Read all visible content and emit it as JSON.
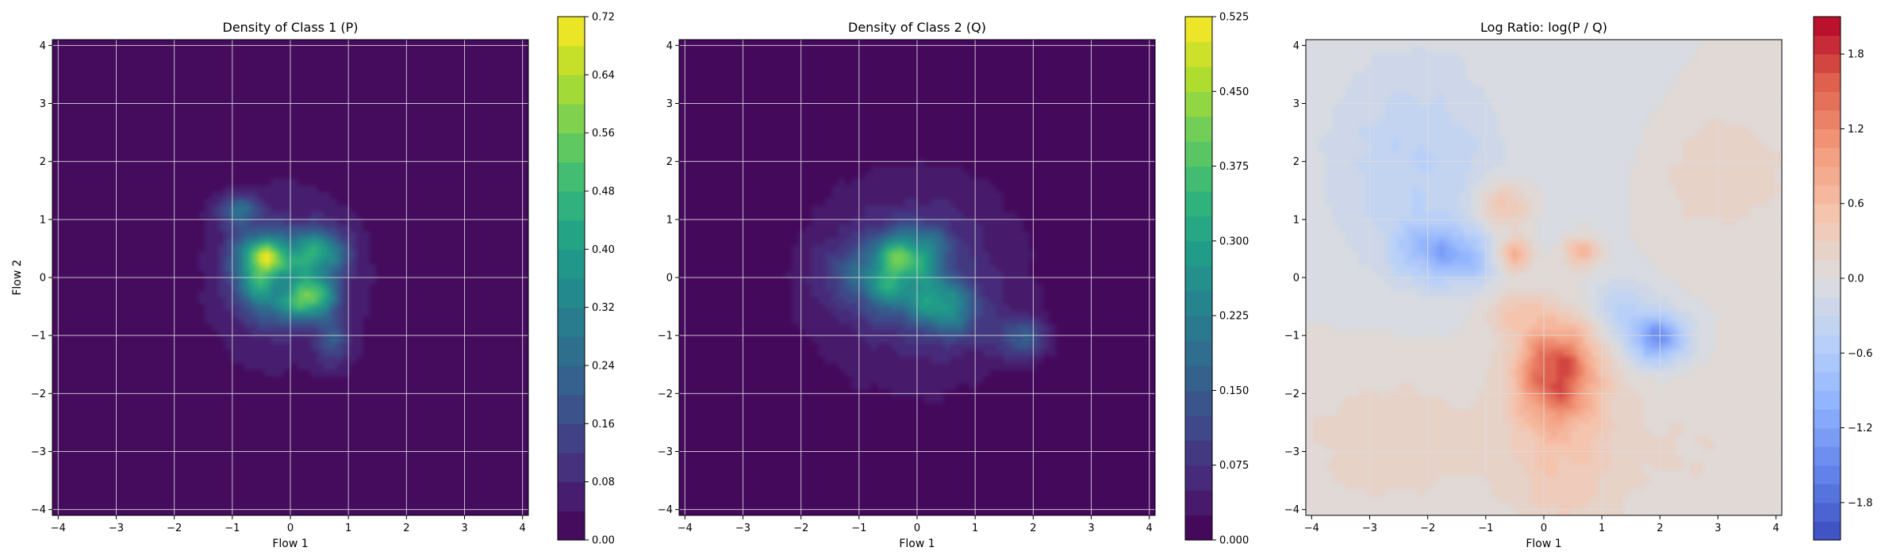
{
  "chart_data": [
    {
      "type": "heatmap",
      "title": "Density of Class 1 (P)",
      "xlabel": "Flow 1",
      "ylabel": "Flow 2",
      "xlim": [
        -4.1,
        4.1
      ],
      "ylim": [
        -4.1,
        4.1
      ],
      "xticks": [
        -4,
        -3,
        -2,
        -1,
        0,
        1,
        2,
        3,
        4
      ],
      "yticks": [
        -4,
        -3,
        -2,
        -1,
        0,
        1,
        2,
        3,
        4
      ],
      "grid": true,
      "colormap": "viridis",
      "colorbar": {
        "min": 0.0,
        "max": 0.72,
        "levels": 18,
        "ticks": [
          0.0,
          0.08,
          0.16,
          0.24,
          0.32,
          0.4,
          0.48,
          0.56,
          0.64,
          0.72
        ],
        "tick_labels": [
          "0.00",
          "0.08",
          "0.16",
          "0.24",
          "0.32",
          "0.40",
          "0.48",
          "0.56",
          "0.64",
          "0.72"
        ]
      },
      "blobs": [
        {
          "x": -0.1,
          "y": 0.0,
          "sx": 1.15,
          "sy": 1.3,
          "a": 0.09
        },
        {
          "x": -0.5,
          "y": 0.35,
          "sx": 0.32,
          "sy": 0.28,
          "a": 0.45
        },
        {
          "x": 0.35,
          "y": -0.35,
          "sx": 0.28,
          "sy": 0.22,
          "a": 0.5
        },
        {
          "x": 0.55,
          "y": 0.4,
          "sx": 0.3,
          "sy": 0.3,
          "a": 0.3
        },
        {
          "x": -0.9,
          "y": 1.15,
          "sx": 0.25,
          "sy": 0.18,
          "a": 0.22
        },
        {
          "x": -0.55,
          "y": -0.2,
          "sx": 0.3,
          "sy": 0.3,
          "a": 0.22
        },
        {
          "x": 0.75,
          "y": -1.1,
          "sx": 0.2,
          "sy": 0.3,
          "a": 0.15
        },
        {
          "x": 0.05,
          "y": 0.35,
          "sx": 0.35,
          "sy": 0.3,
          "a": 0.18
        },
        {
          "x": -0.15,
          "y": -0.6,
          "sx": 0.3,
          "sy": 0.25,
          "a": 0.12
        }
      ]
    },
    {
      "type": "heatmap",
      "title": "Density of Class 2 (Q)",
      "xlabel": "Flow 1",
      "ylabel": "",
      "xlim": [
        -4.1,
        4.1
      ],
      "ylim": [
        -4.1,
        4.1
      ],
      "xticks": [
        -4,
        -3,
        -2,
        -1,
        0,
        1,
        2,
        3,
        4
      ],
      "yticks": [
        -4,
        -3,
        -2,
        -1,
        0,
        1,
        2,
        3,
        4
      ],
      "grid": true,
      "colormap": "viridis",
      "colorbar": {
        "min": 0.0,
        "max": 0.525,
        "levels": 21,
        "ticks": [
          0.0,
          0.075,
          0.15,
          0.225,
          0.3,
          0.375,
          0.45,
          0.525
        ],
        "tick_labels": [
          "0.000",
          "0.075",
          "0.150",
          "0.225",
          "0.300",
          "0.375",
          "0.450",
          "0.525"
        ]
      },
      "blobs": [
        {
          "x": -0.05,
          "y": -0.05,
          "sx": 1.35,
          "sy": 1.3,
          "a": 0.085
        },
        {
          "x": -0.3,
          "y": 0.35,
          "sx": 0.35,
          "sy": 0.3,
          "a": 0.26
        },
        {
          "x": 0.35,
          "y": -0.4,
          "sx": 0.35,
          "sy": 0.3,
          "a": 0.2
        },
        {
          "x": -0.5,
          "y": -0.2,
          "sx": 0.35,
          "sy": 0.3,
          "a": 0.15
        },
        {
          "x": 1.8,
          "y": -1.05,
          "sx": 0.3,
          "sy": 0.25,
          "a": 0.13
        },
        {
          "x": 0.7,
          "y": -0.7,
          "sx": 0.35,
          "sy": 0.3,
          "a": 0.08
        },
        {
          "x": -1.15,
          "y": 0.1,
          "sx": 0.4,
          "sy": 0.35,
          "a": 0.07
        },
        {
          "x": 0.2,
          "y": 0.5,
          "sx": 0.3,
          "sy": 0.3,
          "a": 0.1
        }
      ]
    },
    {
      "type": "heatmap",
      "title": "Log Ratio: log(P / Q)",
      "xlabel": "Flow 1",
      "ylabel": "",
      "xlim": [
        -4.1,
        4.1
      ],
      "ylim": [
        -4.1,
        4.1
      ],
      "xticks": [
        -4,
        -3,
        -2,
        -1,
        0,
        1,
        2,
        3,
        4
      ],
      "yticks": [
        -4,
        -3,
        -2,
        -1,
        0,
        1,
        2,
        3,
        4
      ],
      "grid": true,
      "colormap": "coolwarm",
      "colorbar": {
        "min": -2.1,
        "max": 2.1,
        "levels": 28,
        "ticks": [
          -1.8,
          -1.2,
          -0.6,
          0.0,
          0.6,
          1.2,
          1.8
        ],
        "tick_labels": [
          "−1.8",
          "−1.2",
          "−0.6",
          "0.0",
          "0.6",
          "1.2",
          "1.8"
        ]
      },
      "blobs": [
        {
          "x": 0.2,
          "y": -1.6,
          "sx": 0.45,
          "sy": 0.55,
          "a": 1.5
        },
        {
          "x": 0.35,
          "y": -2.8,
          "sx": 0.7,
          "sy": 1.3,
          "a": 0.45
        },
        {
          "x": -0.5,
          "y": 0.4,
          "sx": 0.2,
          "sy": 0.2,
          "a": 0.8
        },
        {
          "x": 0.65,
          "y": 0.45,
          "sx": 0.2,
          "sy": 0.18,
          "a": 0.75
        },
        {
          "x": -0.7,
          "y": 1.25,
          "sx": 0.35,
          "sy": 0.3,
          "a": 0.6
        },
        {
          "x": -0.5,
          "y": -0.6,
          "sx": 0.35,
          "sy": 0.25,
          "a": 0.4
        },
        {
          "x": 1.95,
          "y": -1.05,
          "sx": 0.35,
          "sy": 0.3,
          "a": -1.3
        },
        {
          "x": -1.9,
          "y": 0.45,
          "sx": 0.45,
          "sy": 0.35,
          "a": -0.8
        },
        {
          "x": -1.3,
          "y": 0.3,
          "sx": 0.3,
          "sy": 0.3,
          "a": -0.5
        },
        {
          "x": 1.3,
          "y": -0.5,
          "sx": 0.4,
          "sy": 0.35,
          "a": -0.45
        },
        {
          "x": -2.2,
          "y": 2.0,
          "sx": 1.1,
          "sy": 1.3,
          "a": -0.45
        },
        {
          "x": 0.9,
          "y": 2.5,
          "sx": 0.9,
          "sy": 1.3,
          "a": -0.2
        },
        {
          "x": 2.9,
          "y": 1.8,
          "sx": 1.1,
          "sy": 0.9,
          "a": 0.25
        },
        {
          "x": -2.6,
          "y": -2.8,
          "sx": 1.3,
          "sy": 0.9,
          "a": 0.25
        },
        {
          "x": 2.5,
          "y": -3.0,
          "sx": 1.0,
          "sy": 0.9,
          "a": 0.15
        },
        {
          "x": 0.3,
          "y": 2.9,
          "sx": 0.8,
          "sy": 1.0,
          "a": 0.15
        }
      ]
    }
  ]
}
